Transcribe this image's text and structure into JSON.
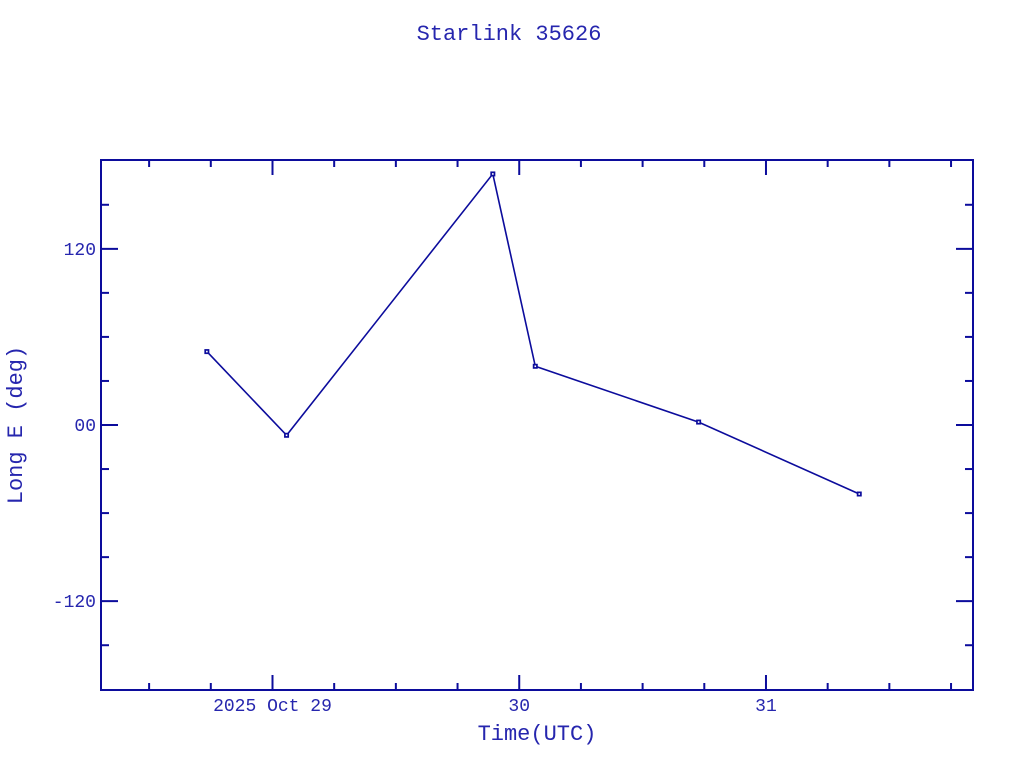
{
  "colors": {
    "plot_line": "#0c0c9c",
    "text": "#2626ae",
    "background": "#ffffff",
    "marker_fill": "#0c0c9c",
    "marker_center": "#ffffff"
  },
  "chart_data": {
    "type": "line",
    "title": "Starlink 35626",
    "xlabel": "Time(UTC)",
    "ylabel": "Long E (deg)",
    "x_unit": "days relative to 2025-10-29 00:00 UTC",
    "xlim": [
      -0.695,
      2.839
    ],
    "ylim": [
      -180.5,
      180.5
    ],
    "grid": false,
    "legend": false,
    "marker": "small-filled-square",
    "x_ticks_major": [
      {
        "x": 0,
        "label": "2025 Oct 29"
      },
      {
        "x": 1,
        "label": "30"
      },
      {
        "x": 2,
        "label": "31"
      }
    ],
    "x_minor_step_days": 0.25,
    "y_ticks_major": [
      {
        "v": 120,
        "label": "120"
      },
      {
        "v": 0,
        "label": "00"
      },
      {
        "v": -120,
        "label": "-120"
      }
    ],
    "y_minor_step_deg": 30,
    "series": [
      {
        "name": "Long E (deg) vs Time",
        "points": [
          {
            "x": -0.266,
            "y": 50,
            "time_utc": "2025-10-28 17:37"
          },
          {
            "x": 0.057,
            "y": -7,
            "time_utc": "2025-10-29 01:22"
          },
          {
            "x": 0.893,
            "y": 171,
            "time_utc": "2025-10-29 21:26"
          },
          {
            "x": 1.065,
            "y": 40,
            "time_utc": "2025-10-30 01:33"
          },
          {
            "x": 1.727,
            "y": 2,
            "time_utc": "2025-10-30 17:27"
          },
          {
            "x": 2.378,
            "y": -47,
            "time_utc": "2025-10-31 09:04"
          }
        ]
      }
    ]
  }
}
